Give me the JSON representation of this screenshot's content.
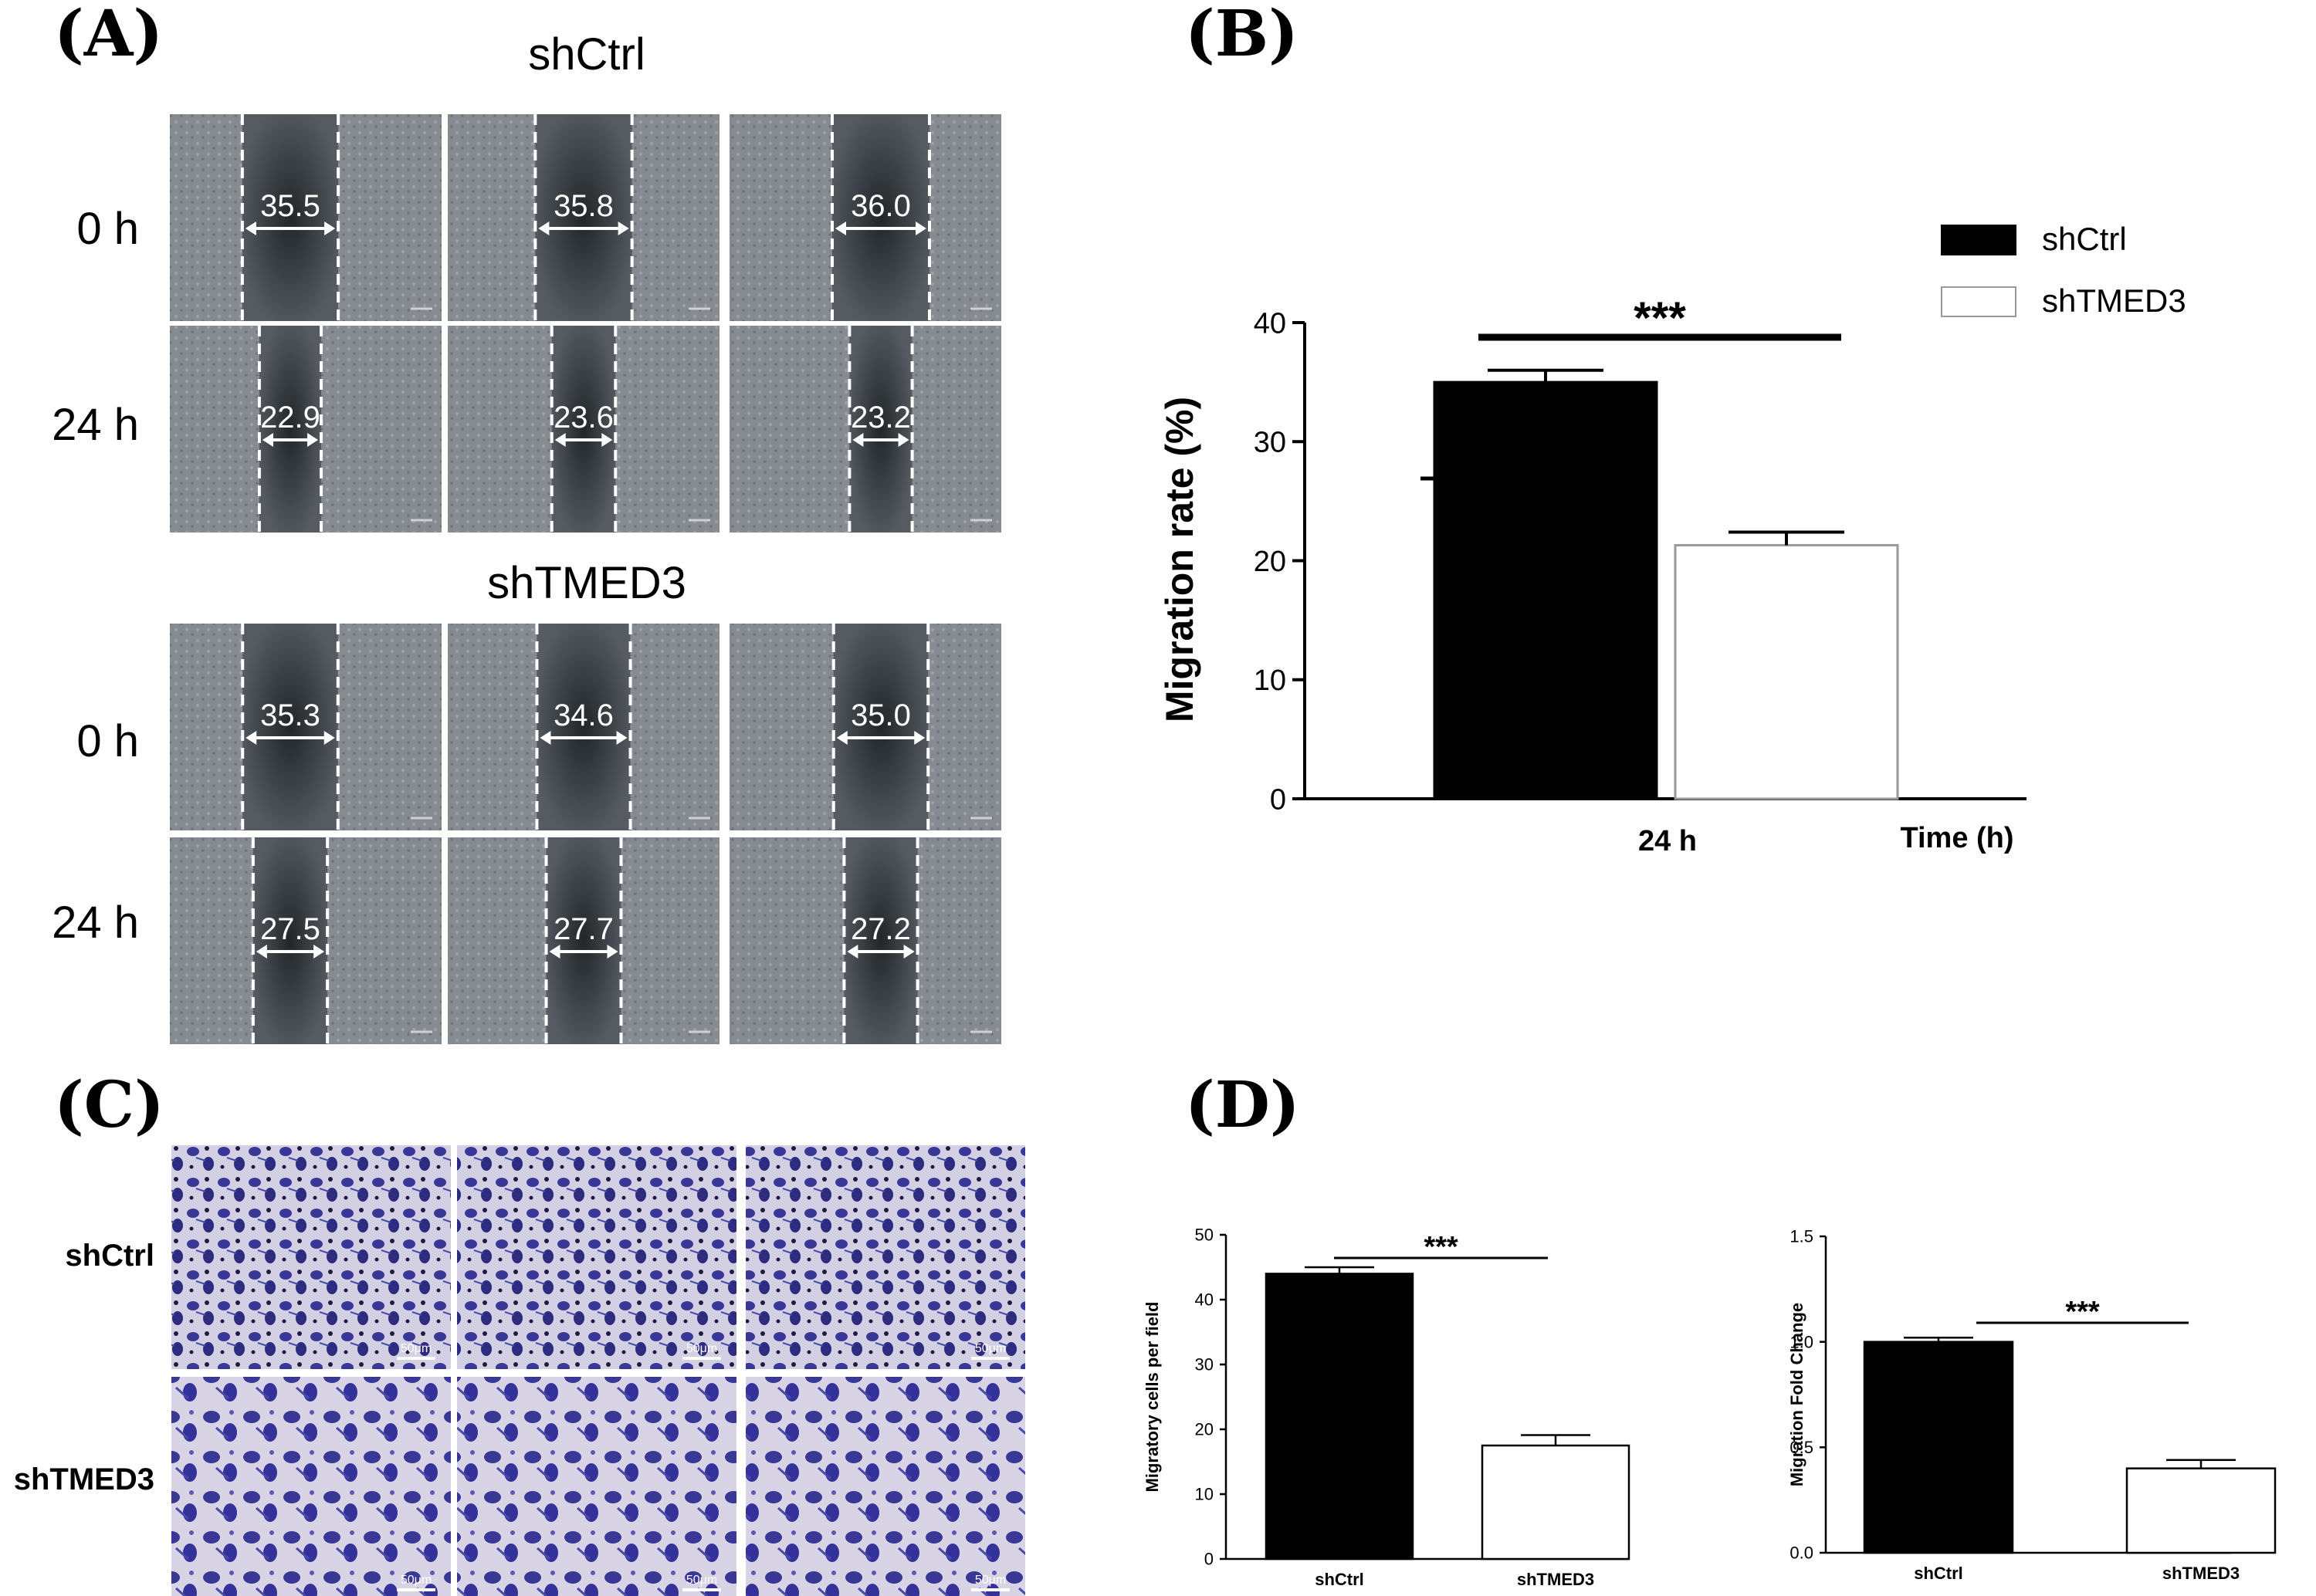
{
  "panels": {
    "A": {
      "letter": "(A)",
      "groups": [
        {
          "title": "shCtrl",
          "rows": [
            {
              "label": "0 h",
              "measures": [
                "35.5",
                "35.8",
                "36.0"
              ]
            },
            {
              "label": "24 h",
              "measures": [
                "22.9",
                "23.6",
                "23.2"
              ]
            }
          ]
        },
        {
          "title": "shTMED3",
          "rows": [
            {
              "label": "0 h",
              "measures": [
                "35.3",
                "34.6",
                "35.0"
              ]
            },
            {
              "label": "24 h",
              "measures": [
                "27.5",
                "27.7",
                "27.2"
              ]
            }
          ]
        }
      ]
    },
    "B": {
      "letter": "(B)"
    },
    "C": {
      "letter": "(C)",
      "row_labels": [
        "shCtrl",
        "shTMED3"
      ],
      "scale_bar": "50μm"
    },
    "D": {
      "letter": "(D)"
    }
  },
  "colors": {
    "shCtrl": "#000000",
    "shTMED3": "#ffffff",
    "wound_cells": "#7d8388",
    "wound_gap": "#3a3f44",
    "transwell_bg": "#cfcbe0",
    "transwell_cells": "#3c3a9a"
  },
  "chart_data": [
    {
      "id": "B",
      "type": "bar",
      "categories": [
        "24 h"
      ],
      "series": [
        {
          "name": "shCtrl",
          "values": [
            35.0
          ],
          "errors": [
            1.0
          ],
          "color": "#000000"
        },
        {
          "name": "shTMED3",
          "values": [
            21.3
          ],
          "errors": [
            1.1
          ],
          "color": "#ffffff"
        }
      ],
      "ylabel": "Migration rate (%)",
      "xlabel": "Time (h)",
      "ylim": [
        0,
        40
      ],
      "yticks": [
        "0",
        "10",
        "20",
        "30",
        "40"
      ],
      "significance": "***",
      "legend": "top-right",
      "grid": false
    },
    {
      "id": "D1",
      "type": "bar",
      "categories": [
        "shCtrl",
        "shTMED3"
      ],
      "values": [
        44,
        17.5
      ],
      "errors": [
        1.0,
        1.6
      ],
      "colors": [
        "#000000",
        "#ffffff"
      ],
      "ylabel": "Migratory cells per field",
      "ylim": [
        0,
        50
      ],
      "yticks": [
        "0",
        "10",
        "20",
        "30",
        "40",
        "50"
      ],
      "significance": "***",
      "grid": false
    },
    {
      "id": "D2",
      "type": "bar",
      "categories": [
        "shCtrl",
        "shTMED3"
      ],
      "values": [
        1.0,
        0.4
      ],
      "errors": [
        0.02,
        0.04
      ],
      "colors": [
        "#000000",
        "#ffffff"
      ],
      "ylabel": "Migration Fold Change",
      "ylim": [
        0,
        1.5
      ],
      "yticks": [
        "0.0",
        "0.5",
        "1.0",
        "1.5"
      ],
      "significance": "***",
      "grid": false
    }
  ]
}
